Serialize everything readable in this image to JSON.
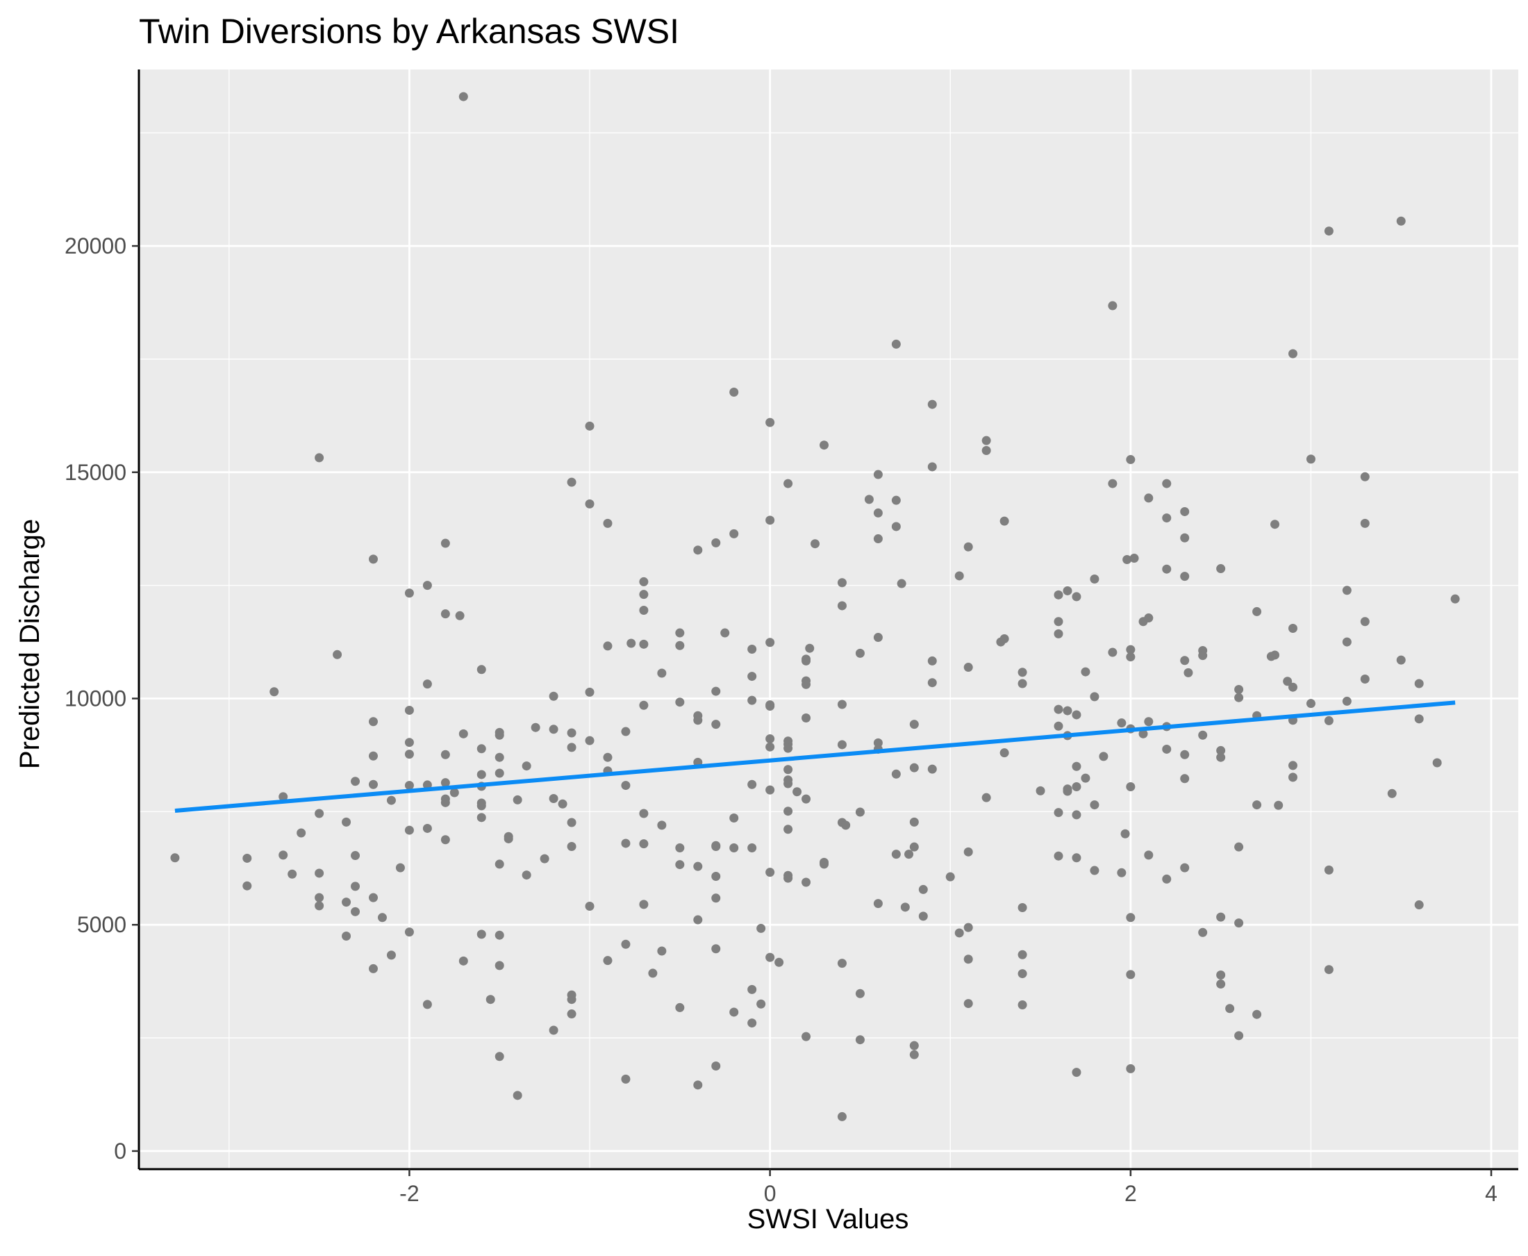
{
  "chart_data": {
    "type": "scatter",
    "title": "Twin Diversions by Arkansas SWSI",
    "xlabel": "SWSI Values",
    "ylabel": "Predicted Discharge",
    "xlim": [
      -3.5,
      4.15
    ],
    "ylim": [
      -400,
      23900
    ],
    "x_ticks": [
      -2,
      0,
      2,
      4
    ],
    "x_tick_labels": [
      "-2",
      "0",
      "2",
      "4"
    ],
    "y_ticks": [
      0,
      5000,
      10000,
      15000,
      20000
    ],
    "y_tick_labels": [
      "0",
      "5000",
      "10000",
      "15000",
      "20000"
    ],
    "grid": true,
    "background_color": "#ebebeb",
    "point_color": "#7f7f7f",
    "trend_color": "#0a8bf5",
    "trend_line": {
      "x": [
        -3.3,
        3.8
      ],
      "y": [
        7520,
        9910
      ]
    },
    "points": [
      [
        -1.7,
        23300
      ],
      [
        3.1,
        20330
      ],
      [
        3.5,
        20550
      ],
      [
        1.9,
        18680
      ],
      [
        2.9,
        17620
      ],
      [
        0.7,
        17830
      ],
      [
        -0.2,
        16770
      ],
      [
        0.9,
        16500
      ],
      [
        -1.0,
        16020
      ],
      [
        0.0,
        16100
      ],
      [
        0.3,
        15600
      ],
      [
        1.2,
        15700
      ],
      [
        1.2,
        15480
      ],
      [
        3.0,
        15290
      ],
      [
        2.0,
        15280
      ],
      [
        -2.5,
        15320
      ],
      [
        0.9,
        15120
      ],
      [
        0.6,
        14950
      ],
      [
        3.3,
        14900
      ],
      [
        -1.1,
        14780
      ],
      [
        0.1,
        14750
      ],
      [
        1.9,
        14750
      ],
      [
        2.2,
        14750
      ],
      [
        0.55,
        14400
      ],
      [
        0.7,
        14380
      ],
      [
        2.1,
        14430
      ],
      [
        -1.0,
        14300
      ],
      [
        0.6,
        14100
      ],
      [
        2.3,
        14130
      ],
      [
        2.2,
        13990
      ],
      [
        0.0,
        13940
      ],
      [
        1.3,
        13920
      ],
      [
        2.8,
        13850
      ],
      [
        3.3,
        13870
      ],
      [
        -0.9,
        13870
      ],
      [
        0.7,
        13800
      ],
      [
        -0.2,
        13640
      ],
      [
        0.6,
        13530
      ],
      [
        2.3,
        13550
      ],
      [
        -1.8,
        13430
      ],
      [
        -0.3,
        13440
      ],
      [
        0.25,
        13420
      ],
      [
        1.1,
        13350
      ],
      [
        -0.4,
        13280
      ],
      [
        -2.2,
        13080
      ],
      [
        1.98,
        13070
      ],
      [
        2.02,
        13100
      ],
      [
        2.2,
        12860
      ],
      [
        2.5,
        12870
      ],
      [
        2.3,
        12700
      ],
      [
        1.05,
        12710
      ],
      [
        1.8,
        12640
      ],
      [
        -0.7,
        12580
      ],
      [
        0.4,
        12560
      ],
      [
        0.73,
        12540
      ],
      [
        -1.9,
        12500
      ],
      [
        3.2,
        12390
      ],
      [
        1.65,
        12380
      ],
      [
        1.6,
        12290
      ],
      [
        1.7,
        12250
      ],
      [
        3.8,
        12200
      ],
      [
        -2.0,
        12330
      ],
      [
        -0.7,
        12300
      ],
      [
        0.4,
        12050
      ],
      [
        -0.7,
        11950
      ],
      [
        2.7,
        11920
      ],
      [
        -1.8,
        11870
      ],
      [
        -1.72,
        11830
      ],
      [
        2.1,
        11780
      ],
      [
        2.07,
        11700
      ],
      [
        1.6,
        11700
      ],
      [
        3.3,
        11700
      ],
      [
        2.9,
        11550
      ],
      [
        -0.5,
        11450
      ],
      [
        1.6,
        11430
      ],
      [
        -0.25,
        11450
      ],
      [
        0.6,
        11350
      ],
      [
        1.3,
        11320
      ],
      [
        1.28,
        11250
      ],
      [
        3.2,
        11250
      ],
      [
        0.0,
        11240
      ],
      [
        -0.77,
        11220
      ],
      [
        -0.7,
        11200
      ],
      [
        -0.9,
        11160
      ],
      [
        -0.5,
        11170
      ],
      [
        -0.1,
        11090
      ],
      [
        0.22,
        11110
      ],
      [
        2.0,
        11080
      ],
      [
        2.4,
        11060
      ],
      [
        1.9,
        11020
      ],
      [
        0.5,
        11000
      ],
      [
        -2.4,
        10970
      ],
      [
        2.8,
        10960
      ],
      [
        2.78,
        10930
      ],
      [
        2.0,
        10920
      ],
      [
        2.4,
        10950
      ],
      [
        0.2,
        10870
      ],
      [
        0.2,
        10830
      ],
      [
        2.3,
        10840
      ],
      [
        3.5,
        10850
      ],
      [
        0.9,
        10830
      ],
      [
        1.1,
        10690
      ],
      [
        -1.6,
        10640
      ],
      [
        -0.6,
        10560
      ],
      [
        1.4,
        10580
      ],
      [
        1.75,
        10590
      ],
      [
        2.32,
        10570
      ],
      [
        -0.1,
        10490
      ],
      [
        0.2,
        10390
      ],
      [
        0.2,
        10310
      ],
      [
        1.4,
        10330
      ],
      [
        0.9,
        10350
      ],
      [
        2.87,
        10380
      ],
      [
        3.3,
        10430
      ],
      [
        3.6,
        10330
      ],
      [
        -1.9,
        10320
      ],
      [
        2.9,
        10250
      ],
      [
        2.6,
        10200
      ],
      [
        -2.75,
        10150
      ],
      [
        -1.0,
        10140
      ],
      [
        -0.3,
        10160
      ],
      [
        1.8,
        10040
      ],
      [
        2.6,
        10020
      ],
      [
        -1.2,
        10050
      ],
      [
        -0.1,
        9960
      ],
      [
        -0.5,
        9920
      ],
      [
        3.2,
        9940
      ],
      [
        3.0,
        9890
      ],
      [
        0.0,
        9860
      ],
      [
        0.0,
        9830
      ],
      [
        0.4,
        9870
      ],
      [
        -0.7,
        9850
      ],
      [
        1.6,
        9760
      ],
      [
        1.65,
        9730
      ],
      [
        -2.0,
        9740
      ],
      [
        1.7,
        9640
      ],
      [
        -0.4,
        9620
      ],
      [
        2.7,
        9620
      ],
      [
        0.2,
        9570
      ],
      [
        -0.4,
        9520
      ],
      [
        2.9,
        9520
      ],
      [
        3.6,
        9550
      ],
      [
        -2.2,
        9490
      ],
      [
        3.1,
        9510
      ],
      [
        -0.3,
        9430
      ],
      [
        0.8,
        9430
      ],
      [
        1.6,
        9390
      ],
      [
        2.1,
        9490
      ],
      [
        1.95,
        9460
      ],
      [
        2.2,
        9380
      ],
      [
        -1.3,
        9360
      ],
      [
        -1.2,
        9320
      ],
      [
        2.0,
        9330
      ],
      [
        -1.1,
        9240
      ],
      [
        -1.5,
        9250
      ],
      [
        -1.5,
        9190
      ],
      [
        -0.8,
        9270
      ],
      [
        -1.7,
        9220
      ],
      [
        2.07,
        9220
      ],
      [
        1.65,
        9180
      ],
      [
        2.4,
        9190
      ],
      [
        -1.0,
        9070
      ],
      [
        0.0,
        9110
      ],
      [
        0.1,
        9060
      ],
      [
        -2.0,
        9030
      ],
      [
        0.1,
        8990
      ],
      [
        0.4,
        8980
      ],
      [
        0.6,
        9020
      ],
      [
        0.0,
        8930
      ],
      [
        0.1,
        8900
      ],
      [
        -1.1,
        8920
      ],
      [
        0.6,
        8880
      ],
      [
        2.2,
        8880
      ],
      [
        2.5,
        8850
      ],
      [
        -1.6,
        8890
      ],
      [
        1.3,
        8800
      ],
      [
        -2.0,
        8770
      ],
      [
        -1.8,
        8760
      ],
      [
        -2.2,
        8730
      ],
      [
        1.85,
        8720
      ],
      [
        2.3,
        8760
      ],
      [
        2.5,
        8700
      ],
      [
        -0.9,
        8700
      ],
      [
        -1.5,
        8700
      ],
      [
        3.7,
        8580
      ],
      [
        -0.4,
        8590
      ],
      [
        2.9,
        8520
      ],
      [
        -1.35,
        8510
      ],
      [
        1.7,
        8500
      ],
      [
        0.8,
        8470
      ],
      [
        0.9,
        8440
      ],
      [
        0.1,
        8430
      ],
      [
        -0.9,
        8400
      ],
      [
        -1.5,
        8350
      ],
      [
        -1.6,
        8320
      ],
      [
        0.7,
        8330
      ],
      [
        1.75,
        8240
      ],
      [
        2.3,
        8230
      ],
      [
        2.9,
        8260
      ],
      [
        -2.3,
        8170
      ],
      [
        -1.8,
        8140
      ],
      [
        -1.9,
        8090
      ],
      [
        -2.0,
        8080
      ],
      [
        -2.2,
        8100
      ],
      [
        -0.1,
        8100
      ],
      [
        0.1,
        8120
      ],
      [
        0.1,
        8200
      ],
      [
        1.7,
        8050
      ],
      [
        2.0,
        8050
      ],
      [
        -1.6,
        8060
      ],
      [
        -0.8,
        8080
      ],
      [
        1.65,
        8000
      ],
      [
        0.0,
        7980
      ],
      [
        1.65,
        7950
      ],
      [
        0.15,
        7940
      ],
      [
        1.5,
        7960
      ],
      [
        -1.75,
        7920
      ],
      [
        3.45,
        7900
      ],
      [
        -2.7,
        7830
      ],
      [
        -1.2,
        7790
      ],
      [
        -1.8,
        7780
      ],
      [
        1.2,
        7810
      ],
      [
        0.2,
        7780
      ],
      [
        -1.4,
        7760
      ],
      [
        -2.1,
        7750
      ],
      [
        -1.8,
        7700
      ],
      [
        -1.6,
        7690
      ],
      [
        -1.6,
        7630
      ],
      [
        -1.15,
        7670
      ],
      [
        1.8,
        7650
      ],
      [
        2.7,
        7650
      ],
      [
        2.82,
        7640
      ],
      [
        0.1,
        7510
      ],
      [
        0.5,
        7490
      ],
      [
        -0.7,
        7460
      ],
      [
        1.6,
        7480
      ],
      [
        1.7,
        7430
      ],
      [
        -2.5,
        7460
      ],
      [
        -1.6,
        7370
      ],
      [
        -0.2,
        7360
      ],
      [
        -2.35,
        7270
      ],
      [
        0.8,
        7270
      ],
      [
        -1.1,
        7260
      ],
      [
        0.4,
        7260
      ],
      [
        0.42,
        7200
      ],
      [
        -0.6,
        7200
      ],
      [
        -1.9,
        7130
      ],
      [
        -2.0,
        7090
      ],
      [
        0.1,
        7110
      ],
      [
        -2.6,
        7030
      ],
      [
        1.97,
        7010
      ],
      [
        -1.45,
        6950
      ],
      [
        -1.45,
        6900
      ],
      [
        -1.8,
        6880
      ],
      [
        -0.8,
        6800
      ],
      [
        -0.7,
        6790
      ],
      [
        -1.1,
        6730
      ],
      [
        -0.3,
        6750
      ],
      [
        -0.3,
        6730
      ],
      [
        -0.5,
        6700
      ],
      [
        -0.2,
        6700
      ],
      [
        -0.1,
        6700
      ],
      [
        0.8,
        6720
      ],
      [
        2.6,
        6720
      ],
      [
        1.1,
        6610
      ],
      [
        0.7,
        6560
      ],
      [
        0.77,
        6560
      ],
      [
        2.1,
        6540
      ],
      [
        -2.3,
        6530
      ],
      [
        -2.7,
        6540
      ],
      [
        1.6,
        6520
      ],
      [
        1.7,
        6480
      ],
      [
        -3.3,
        6480
      ],
      [
        -2.9,
        6470
      ],
      [
        -1.25,
        6460
      ],
      [
        0.3,
        6380
      ],
      [
        0.3,
        6340
      ],
      [
        -1.5,
        6340
      ],
      [
        -0.5,
        6330
      ],
      [
        -0.4,
        6290
      ],
      [
        2.3,
        6260
      ],
      [
        -2.05,
        6260
      ],
      [
        3.1,
        6210
      ],
      [
        1.8,
        6200
      ],
      [
        1.95,
        6150
      ],
      [
        0.0,
        6160
      ],
      [
        -2.65,
        6120
      ],
      [
        -2.5,
        6140
      ],
      [
        -1.35,
        6100
      ],
      [
        -0.3,
        6070
      ],
      [
        0.1,
        6090
      ],
      [
        0.1,
        6030
      ],
      [
        1.0,
        6060
      ],
      [
        2.2,
        6010
      ],
      [
        0.2,
        5940
      ],
      [
        -2.9,
        5860
      ],
      [
        -2.3,
        5850
      ],
      [
        0.85,
        5780
      ],
      [
        -0.3,
        5590
      ],
      [
        -2.5,
        5600
      ],
      [
        -2.2,
        5600
      ],
      [
        -2.35,
        5500
      ],
      [
        0.6,
        5470
      ],
      [
        -0.7,
        5450
      ],
      [
        -1.0,
        5410
      ],
      [
        -2.5,
        5420
      ],
      [
        3.6,
        5440
      ],
      [
        0.75,
        5390
      ],
      [
        1.4,
        5380
      ],
      [
        -2.3,
        5290
      ],
      [
        0.85,
        5190
      ],
      [
        -2.15,
        5160
      ],
      [
        2.0,
        5160
      ],
      [
        2.5,
        5170
      ],
      [
        -0.4,
        5110
      ],
      [
        2.6,
        5040
      ],
      [
        -0.05,
        4920
      ],
      [
        1.1,
        4940
      ],
      [
        1.05,
        4820
      ],
      [
        -2.0,
        4840
      ],
      [
        -1.6,
        4790
      ],
      [
        2.4,
        4830
      ],
      [
        -1.5,
        4770
      ],
      [
        -2.35,
        4750
      ],
      [
        -0.8,
        4570
      ],
      [
        -0.3,
        4470
      ],
      [
        -0.6,
        4420
      ],
      [
        1.4,
        4340
      ],
      [
        -2.1,
        4330
      ],
      [
        0.0,
        4280
      ],
      [
        1.1,
        4240
      ],
      [
        -0.9,
        4210
      ],
      [
        0.05,
        4170
      ],
      [
        0.4,
        4150
      ],
      [
        -1.7,
        4200
      ],
      [
        -1.5,
        4100
      ],
      [
        -2.2,
        4030
      ],
      [
        3.1,
        4010
      ],
      [
        -0.65,
        3930
      ],
      [
        1.4,
        3920
      ],
      [
        2.0,
        3900
      ],
      [
        2.5,
        3890
      ],
      [
        2.5,
        3690
      ],
      [
        -0.1,
        3570
      ],
      [
        0.5,
        3480
      ],
      [
        -1.1,
        3450
      ],
      [
        -1.1,
        3350
      ],
      [
        -1.55,
        3350
      ],
      [
        -0.05,
        3250
      ],
      [
        1.1,
        3260
      ],
      [
        1.4,
        3230
      ],
      [
        -1.9,
        3240
      ],
      [
        -0.5,
        3170
      ],
      [
        2.55,
        3150
      ],
      [
        -0.2,
        3070
      ],
      [
        -1.1,
        3030
      ],
      [
        2.7,
        3020
      ],
      [
        -0.1,
        2830
      ],
      [
        -1.2,
        2670
      ],
      [
        2.6,
        2550
      ],
      [
        0.2,
        2530
      ],
      [
        0.5,
        2460
      ],
      [
        0.8,
        2330
      ],
      [
        0.8,
        2130
      ],
      [
        -1.5,
        2090
      ],
      [
        -0.3,
        1880
      ],
      [
        2.0,
        1820
      ],
      [
        1.7,
        1740
      ],
      [
        -0.8,
        1590
      ],
      [
        -0.4,
        1460
      ],
      [
        -1.4,
        1230
      ],
      [
        0.4,
        760
      ]
    ]
  }
}
